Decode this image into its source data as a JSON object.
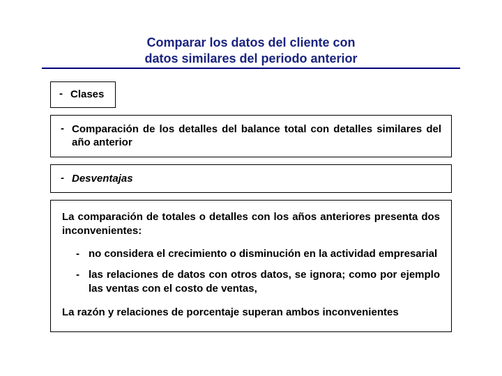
{
  "colors": {
    "title": "#1a237e",
    "underline": "#000080",
    "text": "#000000",
    "border": "#000000",
    "background": "#ffffff"
  },
  "typography": {
    "title_fontsize": 18,
    "body_fontsize": 15,
    "font_family": "Arial",
    "title_weight": "bold",
    "body_weight": "bold"
  },
  "title": {
    "line1": "Comparar los datos del cliente con",
    "line2": "datos similares del periodo anterior"
  },
  "boxes": {
    "clases": "Clases",
    "comparacion": "Comparación de los detalles del balance total con detalles similares del año anterior",
    "desventajas": "Desventajas"
  },
  "detail": {
    "intro": "La comparación de totales o detalles con los años anteriores presenta dos inconvenientes:",
    "items": [
      "no considera el crecimiento o disminución en la actividad empresarial",
      "las relaciones de datos con otros datos, se ignora; como por ejemplo las ventas con el costo de ventas,"
    ],
    "conclusion": "La razón y relaciones de porcentaje superan ambos inconvenientes"
  }
}
